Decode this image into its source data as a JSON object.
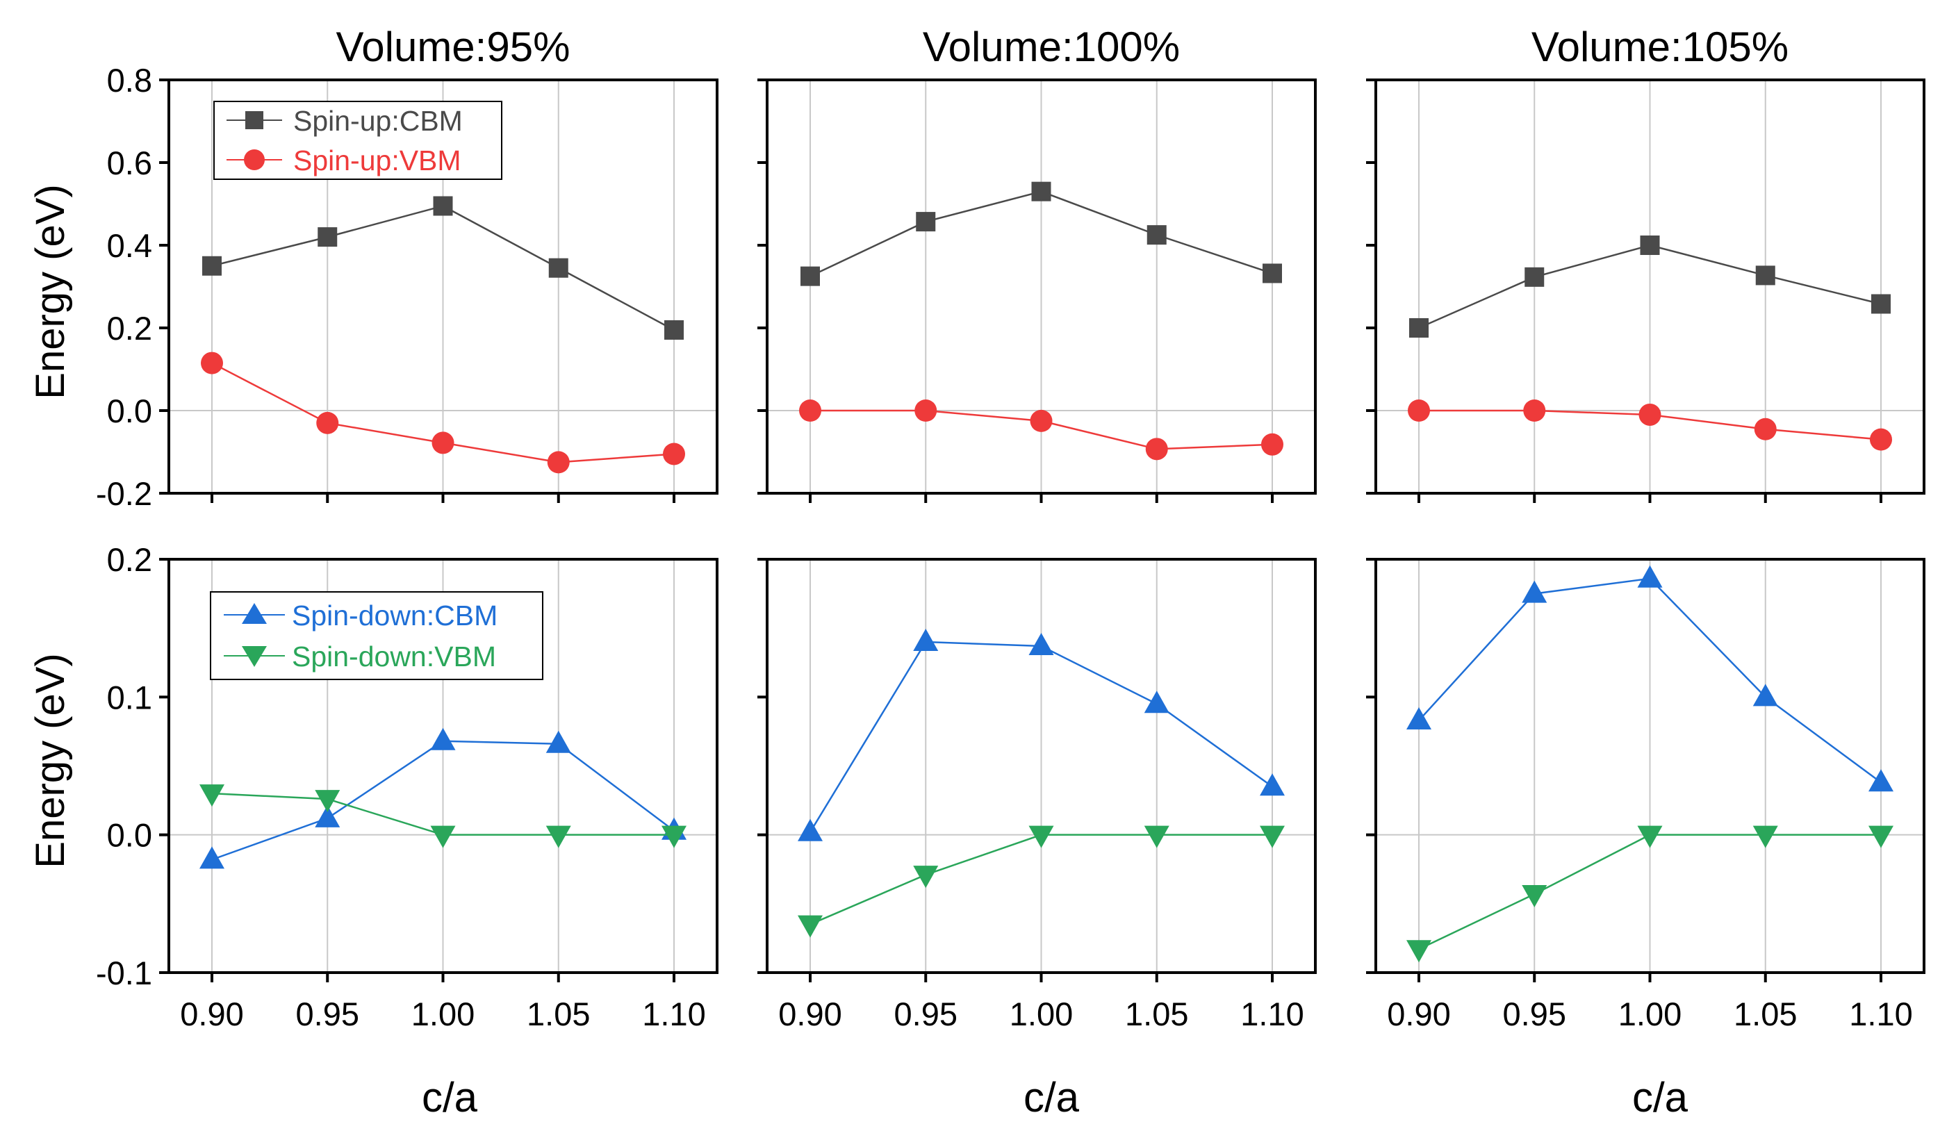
{
  "colors": {
    "cbm_up": "#4a4a4a",
    "vbm_up": "#ee3a3a",
    "cbm_down": "#1f6fd6",
    "vbm_down": "#2aa65a",
    "axis": "#000000",
    "grid": "#c8c8c8"
  },
  "figure": {
    "xlabel": "c/a",
    "ylabel_top": "Energy (eV)",
    "ylabel_bottom": "Energy (eV)",
    "column_titles": [
      "Volume:95%",
      "Volume:100%",
      "Volume:105%"
    ],
    "legend_top": [
      "Spin-up:CBM",
      "Spin-up:VBM"
    ],
    "legend_bottom": [
      "Spin-down:CBM",
      "Spin-down:VBM"
    ]
  },
  "chart_data": [
    {
      "type": "line",
      "title": "Volume:95%",
      "xlabel": "",
      "ylabel": "Energy (eV)",
      "x": [
        0.9,
        0.95,
        1.0,
        1.05,
        1.1
      ],
      "x_ticks": [
        "0.90",
        "0.95",
        "1.00",
        "1.05",
        "1.10"
      ],
      "xlim": [
        0.9,
        1.1
      ],
      "ylim": [
        -0.2,
        0.8
      ],
      "y_ticks": [
        "-0.2",
        "0.0",
        "0.2",
        "0.4",
        "0.6",
        "0.8"
      ],
      "grid": "vertical",
      "legend": "top-left",
      "series": [
        {
          "name": "Spin-up:CBM",
          "marker": "square",
          "color": "#4a4a4a",
          "values": [
            0.35,
            0.42,
            0.495,
            0.345,
            0.195
          ]
        },
        {
          "name": "Spin-up:VBM",
          "marker": "circle",
          "color": "#ee3a3a",
          "values": [
            0.115,
            -0.03,
            -0.078,
            -0.125,
            -0.105
          ]
        }
      ]
    },
    {
      "type": "line",
      "title": "Volume:100%",
      "xlabel": "",
      "ylabel": "",
      "x": [
        0.9,
        0.95,
        1.0,
        1.05,
        1.1
      ],
      "x_ticks": [
        "0.90",
        "0.95",
        "1.00",
        "1.05",
        "1.10"
      ],
      "xlim": [
        0.9,
        1.1
      ],
      "ylim": [
        -0.2,
        0.8
      ],
      "grid": "vertical",
      "series": [
        {
          "name": "Spin-up:CBM",
          "marker": "square",
          "color": "#4a4a4a",
          "values": [
            0.325,
            0.457,
            0.53,
            0.425,
            0.332
          ]
        },
        {
          "name": "Spin-up:VBM",
          "marker": "circle",
          "color": "#ee3a3a",
          "values": [
            0.0,
            0.0,
            -0.025,
            -0.093,
            -0.082
          ]
        }
      ]
    },
    {
      "type": "line",
      "title": "Volume:105%",
      "xlabel": "",
      "ylabel": "",
      "x": [
        0.9,
        0.95,
        1.0,
        1.05,
        1.1
      ],
      "x_ticks": [
        "0.90",
        "0.95",
        "1.00",
        "1.05",
        "1.10"
      ],
      "xlim": [
        0.9,
        1.1
      ],
      "ylim": [
        -0.2,
        0.8
      ],
      "grid": "vertical",
      "series": [
        {
          "name": "Spin-up:CBM",
          "marker": "square",
          "color": "#4a4a4a",
          "values": [
            0.2,
            0.323,
            0.4,
            0.327,
            0.258
          ]
        },
        {
          "name": "Spin-up:VBM",
          "marker": "circle",
          "color": "#ee3a3a",
          "values": [
            0.0,
            0.0,
            -0.01,
            -0.045,
            -0.07
          ]
        }
      ]
    },
    {
      "type": "line",
      "title": "",
      "xlabel": "c/a",
      "ylabel": "Energy (eV)",
      "x": [
        0.9,
        0.95,
        1.0,
        1.05,
        1.1
      ],
      "x_ticks": [
        "0.90",
        "0.95",
        "1.00",
        "1.05",
        "1.10"
      ],
      "xlim": [
        0.9,
        1.1
      ],
      "ylim": [
        -0.1,
        0.2
      ],
      "y_ticks": [
        "-0.1",
        "0.0",
        "0.1",
        "0.2"
      ],
      "grid": "vertical",
      "legend": "top-left",
      "series": [
        {
          "name": "Spin-down:CBM",
          "marker": "triangle-up",
          "color": "#1f6fd6",
          "values": [
            -0.018,
            0.012,
            0.068,
            0.066,
            0.003
          ]
        },
        {
          "name": "Spin-down:VBM",
          "marker": "triangle-down",
          "color": "#2aa65a",
          "values": [
            0.03,
            0.026,
            0.0,
            0.0,
            0.0
          ]
        }
      ]
    },
    {
      "type": "line",
      "title": "",
      "xlabel": "c/a",
      "ylabel": "",
      "x": [
        0.9,
        0.95,
        1.0,
        1.05,
        1.1
      ],
      "x_ticks": [
        "0.90",
        "0.95",
        "1.00",
        "1.05",
        "1.10"
      ],
      "xlim": [
        0.9,
        1.1
      ],
      "ylim": [
        -0.1,
        0.2
      ],
      "grid": "vertical",
      "series": [
        {
          "name": "Spin-down:CBM",
          "marker": "triangle-up",
          "color": "#1f6fd6",
          "values": [
            0.002,
            0.14,
            0.137,
            0.095,
            0.035
          ]
        },
        {
          "name": "Spin-down:VBM",
          "marker": "triangle-down",
          "color": "#2aa65a",
          "values": [
            -0.065,
            -0.029,
            0.0,
            0.0,
            0.0
          ]
        }
      ]
    },
    {
      "type": "line",
      "title": "",
      "xlabel": "c/a",
      "ylabel": "",
      "x": [
        0.9,
        0.95,
        1.0,
        1.05,
        1.1
      ],
      "x_ticks": [
        "0.90",
        "0.95",
        "1.00",
        "1.05",
        "1.10"
      ],
      "xlim": [
        0.9,
        1.1
      ],
      "ylim": [
        -0.1,
        0.2
      ],
      "grid": "vertical",
      "series": [
        {
          "name": "Spin-down:CBM",
          "marker": "triangle-up",
          "color": "#1f6fd6",
          "values": [
            0.083,
            0.175,
            0.186,
            0.1,
            0.038
          ]
        },
        {
          "name": "Spin-down:VBM",
          "marker": "triangle-down",
          "color": "#2aa65a",
          "values": [
            -0.083,
            -0.043,
            0.0,
            0.0,
            0.0
          ]
        }
      ]
    }
  ]
}
